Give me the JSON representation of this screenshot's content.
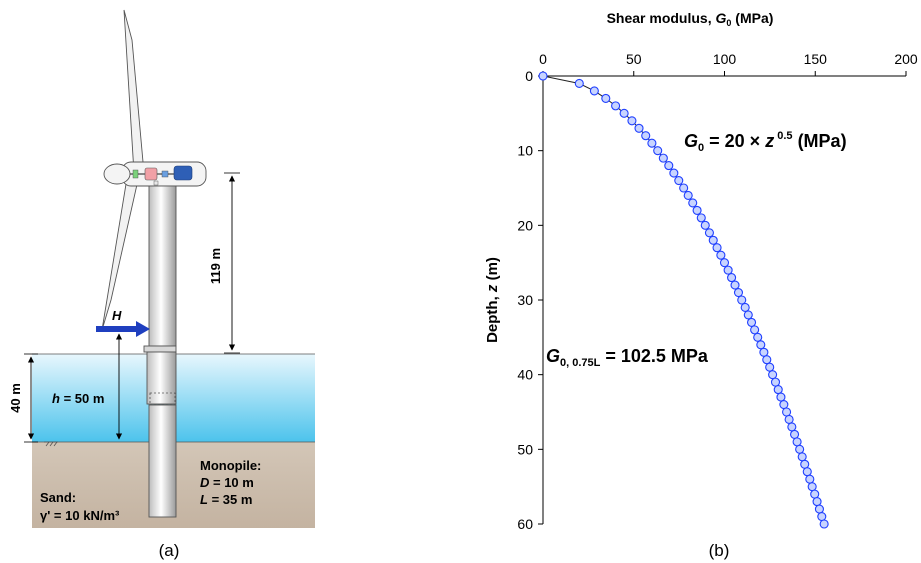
{
  "panel_a": {
    "caption": "(a)",
    "tower_height": {
      "value": "119 m"
    },
    "load": {
      "symbol": "H"
    },
    "water_depth_dim": {
      "value": "40 m"
    },
    "load_height": {
      "symbol": "h",
      "rest": " = 50 m"
    },
    "monopile": {
      "title": "Monopile:",
      "d_symbol": "D",
      "d_rest": " = 10 m",
      "l_symbol": "L",
      "l_rest": " = 35 m"
    },
    "sand": {
      "title": "Sand:",
      "gamma": "γ' = 10 kN/m³"
    },
    "colors": {
      "water_top": "#e8f7fd",
      "water_bottom": "#4cc3ec",
      "soil": "#c9b9a8",
      "load_arrow": "#1f3fbf"
    }
  },
  "panel_b": {
    "caption": "(b)",
    "equation": {
      "lhs_symbol": "G",
      "lhs_sub": "0",
      "mid": " = 20 × ",
      "z_symbol": "z",
      "exp": " 0.5",
      "unit": " (MPa)"
    },
    "annotation": {
      "symbol": "G",
      "sub": "0, 0.75L",
      "rest": " = 102.5 MPa"
    }
  },
  "chart_data": {
    "type": "scatter",
    "xlabel": {
      "text": "Shear modulus, ",
      "symbol": "G",
      "sub": "0",
      "unit": " (MPa)"
    },
    "ylabel": {
      "text": "Depth, ",
      "symbol": "z",
      "unit": " (m)"
    },
    "x_axis_position": "top",
    "y_inverted": true,
    "xlim": [
      0,
      200
    ],
    "ylim": [
      0,
      60
    ],
    "xticks": [
      "0",
      "50",
      "100",
      "150",
      "200"
    ],
    "yticks": [
      "0",
      "10",
      "20",
      "30",
      "40",
      "50",
      "60"
    ],
    "grid": false,
    "series": [
      {
        "marker_color": "#1f3fff",
        "marker_fill": "#c8d4ff",
        "depths": [
          0,
          1,
          2,
          3,
          4,
          5,
          6,
          7,
          8,
          9,
          10,
          11,
          12,
          13,
          14,
          15,
          16,
          17,
          18,
          19,
          20,
          21,
          22,
          23,
          24,
          25,
          26,
          27,
          28,
          29,
          30,
          31,
          32,
          33,
          34,
          35,
          36,
          37,
          38,
          39,
          40,
          41,
          42,
          43,
          44,
          45,
          46,
          47,
          48,
          49,
          50,
          51,
          52,
          53,
          54,
          55,
          56,
          57,
          58,
          59,
          60
        ],
        "moduli": [
          0,
          20.0,
          28.3,
          34.6,
          40.0,
          44.7,
          49.0,
          52.9,
          56.6,
          60.0,
          63.2,
          66.3,
          69.3,
          72.1,
          74.8,
          77.5,
          80.0,
          82.5,
          84.9,
          87.2,
          89.4,
          91.7,
          93.8,
          95.9,
          98.0,
          100.0,
          102.0,
          103.9,
          105.8,
          107.7,
          109.5,
          111.4,
          113.1,
          114.9,
          116.6,
          118.3,
          120.0,
          121.7,
          123.3,
          124.9,
          126.5,
          128.1,
          129.6,
          131.1,
          132.7,
          134.2,
          135.6,
          137.1,
          138.6,
          140.0,
          141.4,
          142.8,
          144.2,
          145.6,
          147.0,
          148.3,
          149.7,
          151.0,
          152.3,
          153.6,
          154.9
        ]
      }
    ]
  }
}
